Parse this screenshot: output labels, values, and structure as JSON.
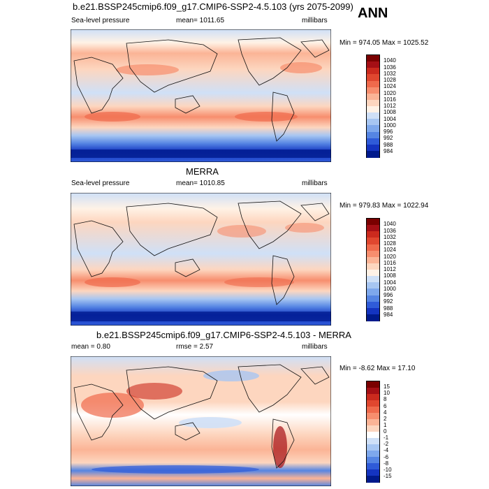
{
  "page": {
    "season": "ANN"
  },
  "panels": [
    {
      "title": "b.e21.BSSP245cmip6.f09_g17.CMIP6-SSP2-4.5.103 (yrs 2075-2099)",
      "left_label": "Sea-level pressure",
      "center_label": "mean= 1011.65",
      "right_label": "millibars",
      "minmax": "Min = 974.05 Max = 1025.52"
    },
    {
      "title": "MERRA",
      "left_label": "Sea-level pressure",
      "center_label": "mean= 1010.85",
      "right_label": "millibars",
      "minmax": "Min = 979.83 Max = 1022.94"
    },
    {
      "title": "b.e21.BSSP245cmip6.f09_g17.CMIP6-SSP2-4.5.103 - MERRA",
      "left_label": "mean =   0.80",
      "center_label": "rmse =   2.57",
      "right_label": "millibars",
      "minmax": "Min =  -8.62 Max =  17.10"
    }
  ],
  "chart_data": [
    {
      "type": "heatmap",
      "title": "b.e21.BSSP245cmip6.f09_g17.CMIP6-SSP2-4.5.103 (yrs 2075-2099)",
      "variable": "Sea-level pressure",
      "units": "millibars",
      "mean": 1011.65,
      "min": 974.05,
      "max": 1025.52,
      "colorbar_levels": [
        "1040",
        "1036",
        "1032",
        "1028",
        "1024",
        "1020",
        "1016",
        "1012",
        "1008",
        "1004",
        "1000",
        "996",
        "992",
        "988",
        "984"
      ],
      "colorbar_colors": [
        "#7a0000",
        "#a50f15",
        "#cb2a1e",
        "#e0472f",
        "#ef6a4c",
        "#f78e6e",
        "#fbb496",
        "#fdd6bf",
        "#fff2e6",
        "#cfe0f7",
        "#a7c6f2",
        "#7ea8ec",
        "#5585e3",
        "#2f5bd8",
        "#1434c0",
        "#001a8c"
      ]
    },
    {
      "type": "heatmap",
      "title": "MERRA",
      "variable": "Sea-level pressure",
      "units": "millibars",
      "mean": 1010.85,
      "min": 979.83,
      "max": 1022.94,
      "colorbar_levels": [
        "1040",
        "1036",
        "1032",
        "1028",
        "1024",
        "1020",
        "1016",
        "1012",
        "1008",
        "1004",
        "1000",
        "996",
        "992",
        "988",
        "984"
      ],
      "colorbar_colors": [
        "#7a0000",
        "#a50f15",
        "#cb2a1e",
        "#e0472f",
        "#ef6a4c",
        "#f78e6e",
        "#fbb496",
        "#fdd6bf",
        "#fff2e6",
        "#cfe0f7",
        "#a7c6f2",
        "#7ea8ec",
        "#5585e3",
        "#2f5bd8",
        "#1434c0",
        "#001a8c"
      ]
    },
    {
      "type": "heatmap",
      "title": "b.e21.BSSP245cmip6.f09_g17.CMIP6-SSP2-4.5.103 - MERRA",
      "units": "millibars",
      "mean": 0.8,
      "rmse": 2.57,
      "min": -8.62,
      "max": 17.1,
      "colorbar_levels": [
        "15",
        "10",
        "8",
        "6",
        "4",
        "2",
        "1",
        "0",
        "-1",
        "-2",
        "-4",
        "-6",
        "-8",
        "-10",
        "-15"
      ],
      "colorbar_colors": [
        "#7a0000",
        "#a50f15",
        "#cb2a1e",
        "#e0472f",
        "#ef6a4c",
        "#f78e6e",
        "#fbb496",
        "#fdd6bf",
        "#ffffff",
        "#cfe0f7",
        "#a7c6f2",
        "#7ea8ec",
        "#5585e3",
        "#2f5bd8",
        "#1434c0",
        "#001a8c"
      ]
    }
  ]
}
